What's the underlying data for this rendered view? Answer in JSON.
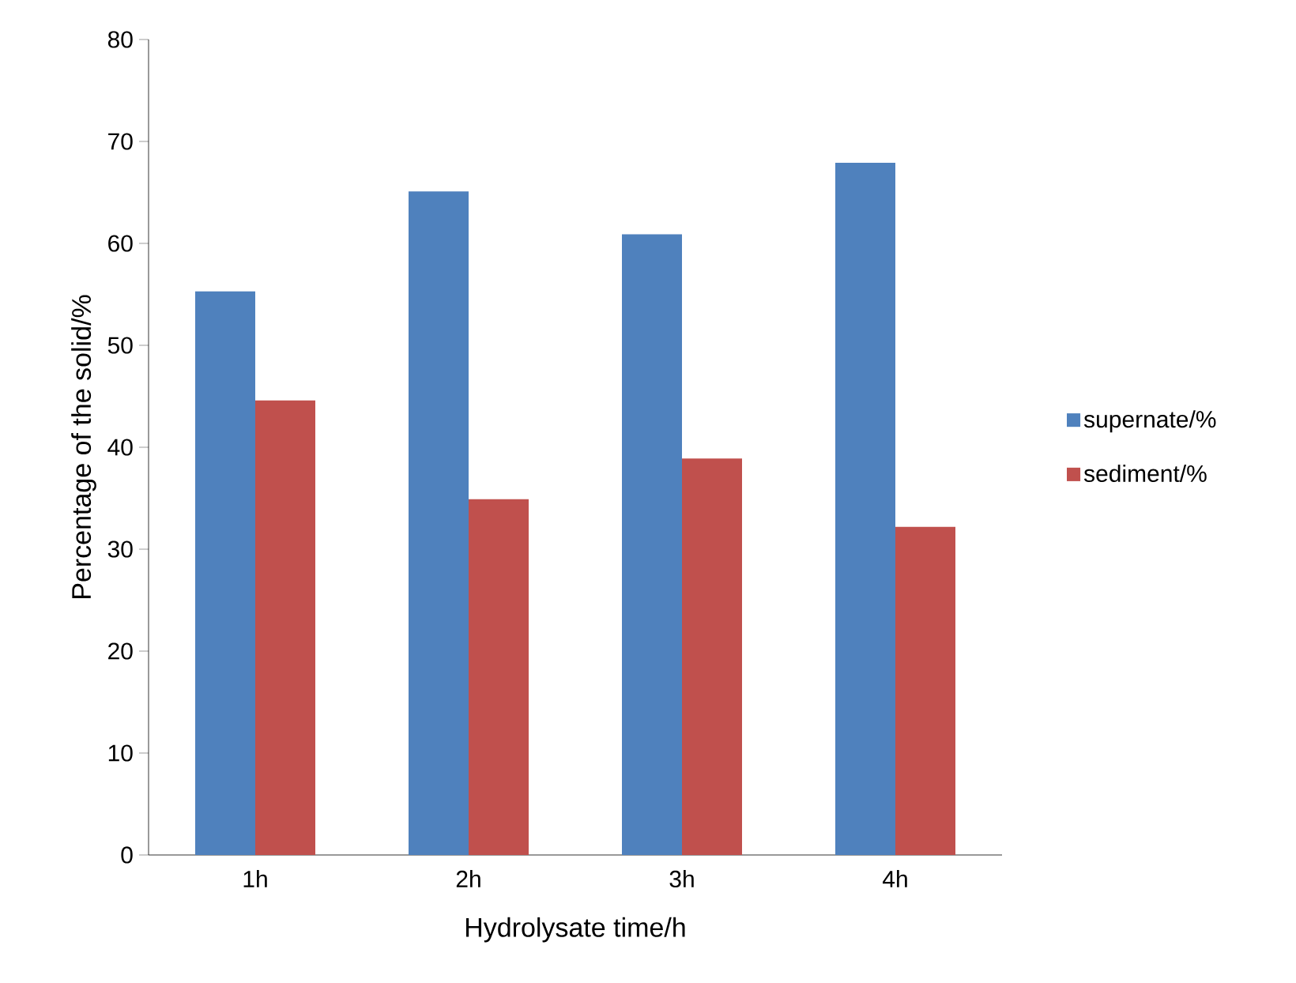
{
  "chart_data": {
    "type": "bar",
    "xlabel": "Hydrolysate time/h",
    "ylabel": "Percentage of the solid/%",
    "categories": [
      "1h",
      "2h",
      "3h",
      "4h"
    ],
    "series": [
      {
        "name": "supernate/%",
        "color": "#4f81bd",
        "values": [
          55.3,
          65.1,
          60.9,
          67.9
        ]
      },
      {
        "name": "sediment/%",
        "color": "#c0504d",
        "values": [
          44.6,
          34.9,
          38.9,
          32.2
        ]
      }
    ],
    "ylim": [
      0,
      80
    ],
    "yticks": [
      0,
      10,
      20,
      30,
      40,
      50,
      60,
      70,
      80
    ],
    "grid": false,
    "legend": "right"
  }
}
